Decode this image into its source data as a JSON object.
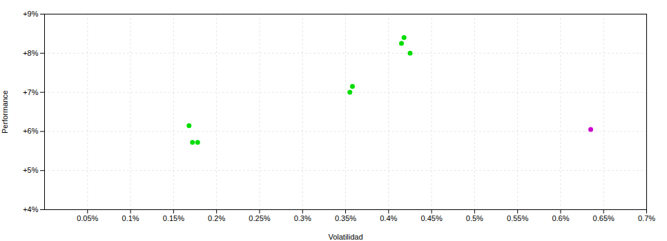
{
  "chart_data": {
    "type": "scatter",
    "xlabel": "Volatilidad",
    "ylabel": "Performance",
    "xlim": [
      0.0,
      0.007
    ],
    "ylim": [
      0.04,
      0.09
    ],
    "xticks": [
      {
        "value": 0.0005,
        "label": "0.05%"
      },
      {
        "value": 0.001,
        "label": "0.1%"
      },
      {
        "value": 0.0015,
        "label": "0.15%"
      },
      {
        "value": 0.002,
        "label": "0.2%"
      },
      {
        "value": 0.0025,
        "label": "0.25%"
      },
      {
        "value": 0.003,
        "label": "0.3%"
      },
      {
        "value": 0.0035,
        "label": "0.35%"
      },
      {
        "value": 0.004,
        "label": "0.4%"
      },
      {
        "value": 0.0045,
        "label": "0.45%"
      },
      {
        "value": 0.005,
        "label": "0.5%"
      },
      {
        "value": 0.0055,
        "label": "0.55%"
      },
      {
        "value": 0.006,
        "label": "0.6%"
      },
      {
        "value": 0.0065,
        "label": "0.65%"
      },
      {
        "value": 0.007,
        "label": "0.7%"
      }
    ],
    "yticks": [
      {
        "value": 0.04,
        "label": "+4%"
      },
      {
        "value": 0.05,
        "label": "+5%"
      },
      {
        "value": 0.06,
        "label": "+6%"
      },
      {
        "value": 0.07,
        "label": "+7%"
      },
      {
        "value": 0.08,
        "label": "+8%"
      },
      {
        "value": 0.09,
        "label": "+9%"
      }
    ],
    "grid": true,
    "series": [
      {
        "color": "#00dd00",
        "x": [
          0.00168,
          0.00172,
          0.00178,
          0.00355,
          0.00358,
          0.00415,
          0.00418,
          0.00425
        ],
        "values": [
          0.0615,
          0.0572,
          0.0572,
          0.07,
          0.0715,
          0.0825,
          0.084,
          0.08
        ]
      },
      {
        "color": "#cc00cc",
        "x": [
          0.00635
        ],
        "values": [
          0.0605
        ]
      }
    ]
  }
}
